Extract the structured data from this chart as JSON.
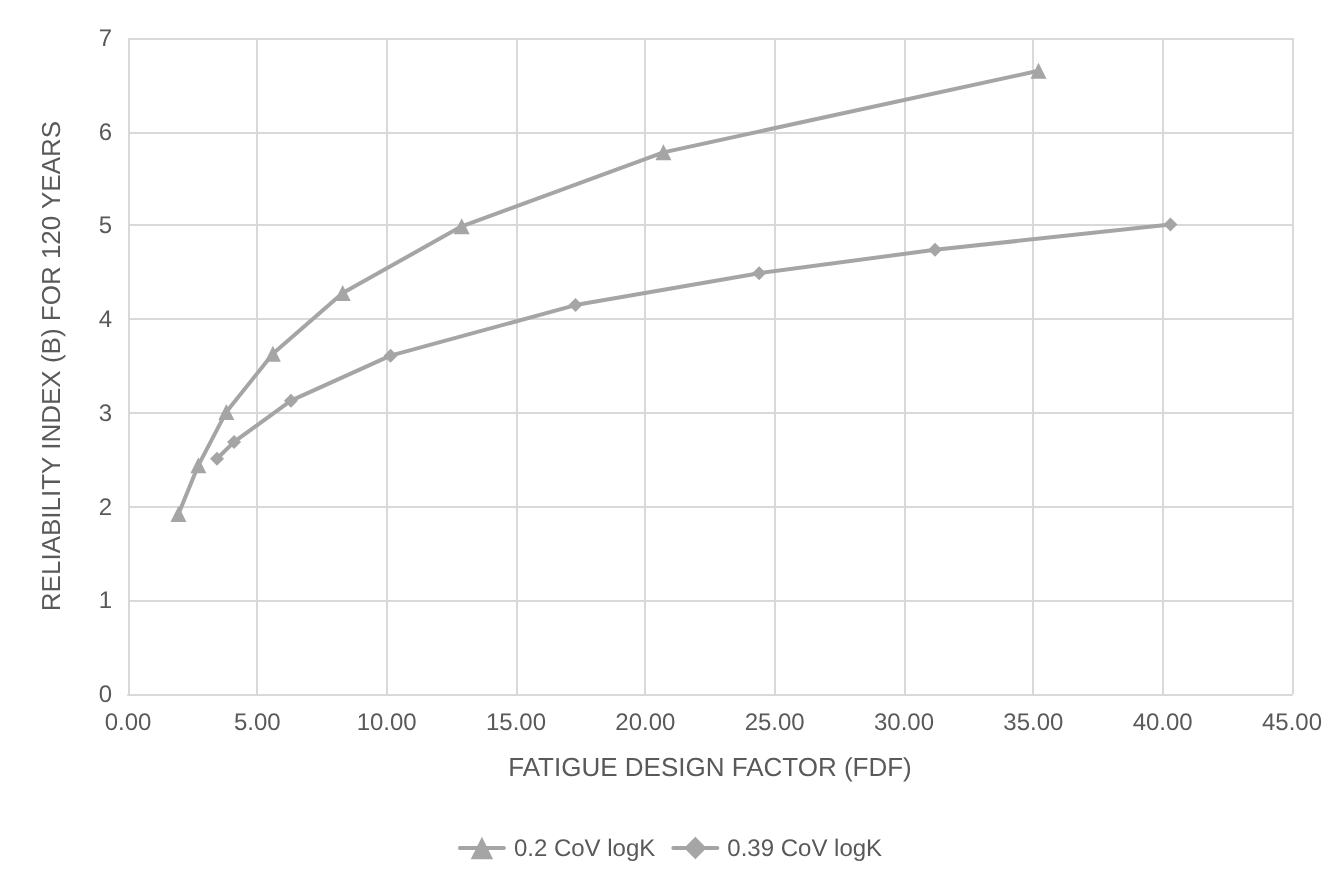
{
  "chart_data": {
    "type": "line",
    "xlabel": "FATIGUE DESIGN FACTOR (FDF)",
    "ylabel": "RELIABILITY INDEX (Β) FOR 120 YEARS",
    "xlim": [
      0,
      45
    ],
    "xticks": [
      {
        "value": 0,
        "label": "0.00"
      },
      {
        "value": 5,
        "label": "5.00"
      },
      {
        "value": 10,
        "label": "10.00"
      },
      {
        "value": 15,
        "label": "15.00"
      },
      {
        "value": 20,
        "label": "20.00"
      },
      {
        "value": 25,
        "label": "25.00"
      },
      {
        "value": 30,
        "label": "30.00"
      },
      {
        "value": 35,
        "label": "35.00"
      },
      {
        "value": 40,
        "label": "40.00"
      },
      {
        "value": 45,
        "label": "45.00"
      }
    ],
    "ylim": [
      0,
      7
    ],
    "yticks": [
      0,
      1,
      2,
      3,
      4,
      5,
      6,
      7
    ],
    "grid": true,
    "legend": "bottom",
    "series": [
      {
        "name": "0.2 CoV logK",
        "color": "#a5a5a5",
        "marker": "triangle",
        "x": [
          1.95,
          2.72,
          3.8,
          5.6,
          8.3,
          12.9,
          20.7,
          35.2
        ],
        "values": [
          1.92,
          2.44,
          3.01,
          3.63,
          4.28,
          4.99,
          5.78,
          6.65
        ]
      },
      {
        "name": "0.39 CoV logK",
        "color": "#a5a5a5",
        "marker": "diamond",
        "x": [
          3.44,
          4.1,
          6.3,
          10.15,
          17.3,
          24.4,
          31.2,
          40.3
        ],
        "values": [
          2.51,
          2.69,
          3.13,
          3.61,
          4.15,
          4.49,
          4.74,
          5.01
        ]
      }
    ]
  }
}
